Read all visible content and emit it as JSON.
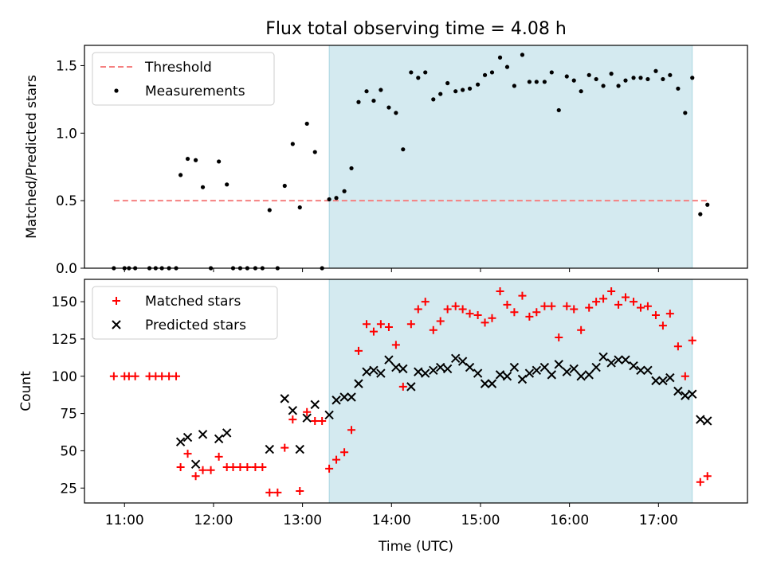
{
  "title": "Flux total observing time = 4.08 h",
  "chart_data": [
    {
      "type": "scatter",
      "ylabel": "Matched/Predicted stars",
      "ylim": [
        0,
        1.65
      ],
      "yticks": [
        0.0,
        0.5,
        1.0,
        1.5
      ],
      "ytick_labels": [
        "0.0",
        "0.5",
        "1.0",
        "1.5"
      ],
      "xlim": [
        10.55,
        18.0
      ],
      "xticks": [
        11,
        12,
        13,
        14,
        15,
        16,
        17
      ],
      "xtick_labels": [],
      "shaded_region": {
        "x0": 13.3,
        "x1": 17.38,
        "color": "#d4eaf0"
      },
      "legend": {
        "placement": "top-left",
        "entries": [
          "Threshold",
          "Measurements"
        ]
      },
      "threshold": {
        "name": "Threshold",
        "y": 0.5,
        "x_start": 10.88,
        "x_end": 17.55,
        "color": "#f58080"
      },
      "series": [
        {
          "name": "Measurements",
          "color": "#000000",
          "points": [
            [
              10.88,
              0
            ],
            [
              11.0,
              0
            ],
            [
              11.05,
              0
            ],
            [
              11.12,
              0
            ],
            [
              11.28,
              0
            ],
            [
              11.35,
              0
            ],
            [
              11.42,
              0
            ],
            [
              11.5,
              0
            ],
            [
              11.58,
              0
            ],
            [
              11.63,
              0.69
            ],
            [
              11.71,
              0.81
            ],
            [
              11.8,
              0.8
            ],
            [
              11.88,
              0.6
            ],
            [
              11.97,
              0
            ],
            [
              12.06,
              0.79
            ],
            [
              12.15,
              0.62
            ],
            [
              12.22,
              0
            ],
            [
              12.3,
              0
            ],
            [
              12.38,
              0
            ],
            [
              12.47,
              0
            ],
            [
              12.55,
              0
            ],
            [
              12.63,
              0.43
            ],
            [
              12.72,
              0
            ],
            [
              12.8,
              0.61
            ],
            [
              12.89,
              0.92
            ],
            [
              12.97,
              0.45
            ],
            [
              13.05,
              1.07
            ],
            [
              13.14,
              0.86
            ],
            [
              13.22,
              0
            ],
            [
              13.3,
              0.51
            ],
            [
              13.38,
              0.52
            ],
            [
              13.47,
              0.57
            ],
            [
              13.55,
              0.74
            ],
            [
              13.63,
              1.23
            ],
            [
              13.72,
              1.31
            ],
            [
              13.8,
              1.24
            ],
            [
              13.88,
              1.32
            ],
            [
              13.97,
              1.19
            ],
            [
              14.05,
              1.15
            ],
            [
              14.13,
              0.88
            ],
            [
              14.22,
              1.45
            ],
            [
              14.3,
              1.41
            ],
            [
              14.38,
              1.45
            ],
            [
              14.47,
              1.25
            ],
            [
              14.55,
              1.29
            ],
            [
              14.63,
              1.37
            ],
            [
              14.72,
              1.31
            ],
            [
              14.8,
              1.32
            ],
            [
              14.88,
              1.33
            ],
            [
              14.97,
              1.36
            ],
            [
              15.05,
              1.43
            ],
            [
              15.13,
              1.45
            ],
            [
              15.22,
              1.56
            ],
            [
              15.3,
              1.49
            ],
            [
              15.38,
              1.35
            ],
            [
              15.47,
              1.58
            ],
            [
              15.55,
              1.38
            ],
            [
              15.63,
              1.38
            ],
            [
              15.72,
              1.38
            ],
            [
              15.8,
              1.45
            ],
            [
              15.88,
              1.17
            ],
            [
              15.97,
              1.42
            ],
            [
              16.05,
              1.39
            ],
            [
              16.13,
              1.31
            ],
            [
              16.22,
              1.43
            ],
            [
              16.3,
              1.4
            ],
            [
              16.38,
              1.35
            ],
            [
              16.47,
              1.44
            ],
            [
              16.55,
              1.35
            ],
            [
              16.63,
              1.39
            ],
            [
              16.72,
              1.41
            ],
            [
              16.8,
              1.41
            ],
            [
              16.88,
              1.4
            ],
            [
              16.97,
              1.46
            ],
            [
              17.05,
              1.4
            ],
            [
              17.13,
              1.43
            ],
            [
              17.22,
              1.33
            ],
            [
              17.3,
              1.15
            ],
            [
              17.38,
              1.41
            ],
            [
              17.47,
              0.4
            ],
            [
              17.55,
              0.47
            ]
          ]
        }
      ]
    },
    {
      "type": "scatter",
      "ylabel": "Count",
      "xlabel": "Time (UTC)",
      "ylim": [
        15,
        165
      ],
      "yticks": [
        25,
        50,
        75,
        100,
        125,
        150
      ],
      "ytick_labels": [
        "25",
        "50",
        "75",
        "100",
        "125",
        "150"
      ],
      "xlim": [
        10.55,
        18.0
      ],
      "xticks": [
        11,
        12,
        13,
        14,
        15,
        16,
        17
      ],
      "xtick_labels": [
        "11:00",
        "12:00",
        "13:00",
        "14:00",
        "15:00",
        "16:00",
        "17:00"
      ],
      "shaded_region": {
        "x0": 13.3,
        "x1": 17.38,
        "color": "#d4eaf0"
      },
      "legend": {
        "placement": "top-left",
        "entries": [
          "Matched stars",
          "Predicted stars"
        ]
      },
      "series": [
        {
          "name": "Matched stars",
          "marker": "plus",
          "color": "#ff0000",
          "points": [
            [
              10.88,
              100
            ],
            [
              11.0,
              100
            ],
            [
              11.05,
              100
            ],
            [
              11.12,
              100
            ],
            [
              11.28,
              100
            ],
            [
              11.35,
              100
            ],
            [
              11.42,
              100
            ],
            [
              11.5,
              100
            ],
            [
              11.58,
              100
            ],
            [
              11.63,
              39
            ],
            [
              11.71,
              48
            ],
            [
              11.8,
              33
            ],
            [
              11.88,
              37
            ],
            [
              11.97,
              37
            ],
            [
              12.06,
              46
            ],
            [
              12.15,
              39
            ],
            [
              12.22,
              39
            ],
            [
              12.3,
              39
            ],
            [
              12.38,
              39
            ],
            [
              12.47,
              39
            ],
            [
              12.55,
              39
            ],
            [
              12.63,
              22
            ],
            [
              12.72,
              22
            ],
            [
              12.8,
              52
            ],
            [
              12.89,
              71
            ],
            [
              12.97,
              23
            ],
            [
              13.05,
              76
            ],
            [
              13.14,
              70
            ],
            [
              13.22,
              70
            ],
            [
              13.3,
              38
            ],
            [
              13.38,
              44
            ],
            [
              13.47,
              49
            ],
            [
              13.55,
              64
            ],
            [
              13.63,
              117
            ],
            [
              13.72,
              135
            ],
            [
              13.8,
              130
            ],
            [
              13.88,
              135
            ],
            [
              13.97,
              133
            ],
            [
              14.05,
              121
            ],
            [
              14.13,
              93
            ],
            [
              14.22,
              135
            ],
            [
              14.3,
              145
            ],
            [
              14.38,
              150
            ],
            [
              14.47,
              131
            ],
            [
              14.55,
              137
            ],
            [
              14.63,
              145
            ],
            [
              14.72,
              147
            ],
            [
              14.8,
              145
            ],
            [
              14.88,
              142
            ],
            [
              14.97,
              141
            ],
            [
              15.05,
              136
            ],
            [
              15.13,
              139
            ],
            [
              15.22,
              157
            ],
            [
              15.3,
              148
            ],
            [
              15.38,
              143
            ],
            [
              15.47,
              154
            ],
            [
              15.55,
              140
            ],
            [
              15.63,
              143
            ],
            [
              15.72,
              147
            ],
            [
              15.8,
              147
            ],
            [
              15.88,
              126
            ],
            [
              15.97,
              147
            ],
            [
              16.05,
              145
            ],
            [
              16.13,
              131
            ],
            [
              16.22,
              146
            ],
            [
              16.3,
              150
            ],
            [
              16.38,
              152
            ],
            [
              16.47,
              157
            ],
            [
              16.55,
              148
            ],
            [
              16.63,
              153
            ],
            [
              16.72,
              150
            ],
            [
              16.8,
              146
            ],
            [
              16.88,
              147
            ],
            [
              16.97,
              141
            ],
            [
              17.05,
              134
            ],
            [
              17.13,
              142
            ],
            [
              17.22,
              120
            ],
            [
              17.3,
              100
            ],
            [
              17.38,
              124
            ],
            [
              17.47,
              29
            ],
            [
              17.55,
              33
            ]
          ]
        },
        {
          "name": "Predicted stars",
          "marker": "x",
          "color": "#000000",
          "points": [
            [
              11.63,
              56
            ],
            [
              11.71,
              59
            ],
            [
              11.8,
              41
            ],
            [
              11.88,
              61
            ],
            [
              12.06,
              58
            ],
            [
              12.15,
              62
            ],
            [
              12.63,
              51
            ],
            [
              12.8,
              85
            ],
            [
              12.89,
              77
            ],
            [
              12.97,
              51
            ],
            [
              13.05,
              72
            ],
            [
              13.14,
              81
            ],
            [
              13.3,
              74
            ],
            [
              13.38,
              84
            ],
            [
              13.47,
              86
            ],
            [
              13.55,
              86
            ],
            [
              13.63,
              95
            ],
            [
              13.72,
              103
            ],
            [
              13.8,
              104
            ],
            [
              13.88,
              102
            ],
            [
              13.97,
              111
            ],
            [
              14.05,
              106
            ],
            [
              14.13,
              105
            ],
            [
              14.22,
              93
            ],
            [
              14.3,
              103
            ],
            [
              14.38,
              102
            ],
            [
              14.47,
              104
            ],
            [
              14.55,
              106
            ],
            [
              14.63,
              105
            ],
            [
              14.72,
              112
            ],
            [
              14.8,
              110
            ],
            [
              14.88,
              106
            ],
            [
              14.97,
              102
            ],
            [
              15.05,
              95
            ],
            [
              15.13,
              95
            ],
            [
              15.22,
              101
            ],
            [
              15.3,
              100
            ],
            [
              15.38,
              106
            ],
            [
              15.47,
              98
            ],
            [
              15.55,
              102
            ],
            [
              15.63,
              104
            ],
            [
              15.72,
              106
            ],
            [
              15.8,
              101
            ],
            [
              15.88,
              108
            ],
            [
              15.97,
              103
            ],
            [
              16.05,
              105
            ],
            [
              16.13,
              100
            ],
            [
              16.22,
              101
            ],
            [
              16.3,
              106
            ],
            [
              16.38,
              113
            ],
            [
              16.47,
              109
            ],
            [
              16.55,
              111
            ],
            [
              16.63,
              111
            ],
            [
              16.72,
              107
            ],
            [
              16.8,
              104
            ],
            [
              16.88,
              104
            ],
            [
              16.97,
              97
            ],
            [
              17.05,
              97
            ],
            [
              17.13,
              99
            ],
            [
              17.22,
              90
            ],
            [
              17.3,
              87
            ],
            [
              17.38,
              88
            ],
            [
              17.47,
              71
            ],
            [
              17.55,
              70
            ]
          ]
        }
      ]
    }
  ]
}
